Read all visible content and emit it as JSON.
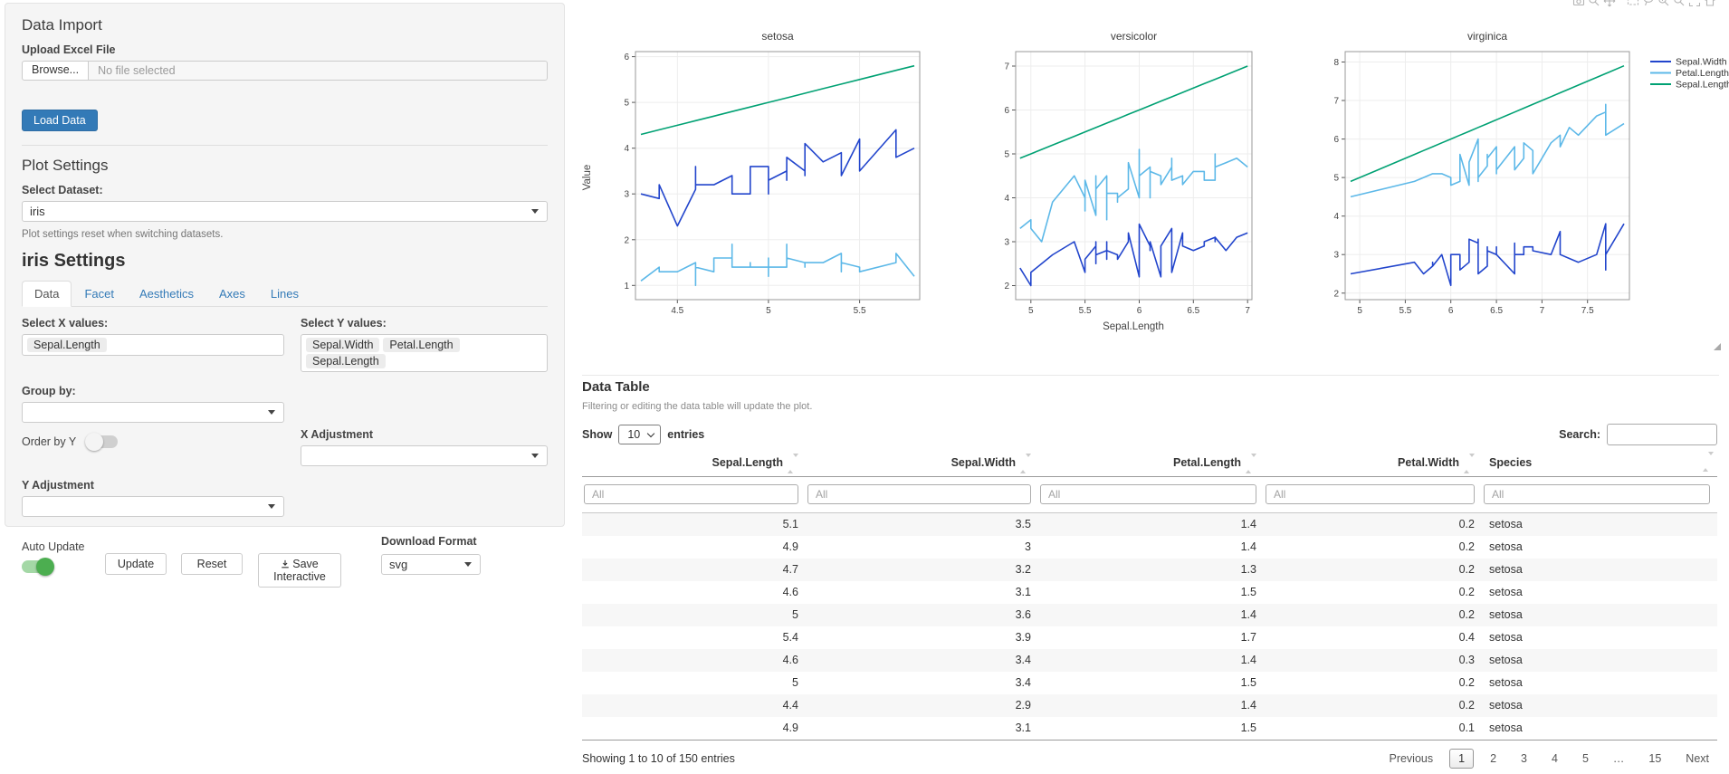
{
  "sidebar": {
    "data_import": {
      "title": "Data Import",
      "upload_label": "Upload Excel File",
      "browse_label": "Browse...",
      "file_placeholder": "No file selected",
      "load_button": "Load Data"
    },
    "plot_settings": {
      "title": "Plot Settings",
      "dataset_label": "Select Dataset:",
      "dataset_value": "iris",
      "help": "Plot settings reset when switching datasets."
    },
    "iris_settings": {
      "title": "iris Settings",
      "tabs": [
        {
          "label": "Data",
          "active": true
        },
        {
          "label": "Facet",
          "active": false
        },
        {
          "label": "Aesthetics",
          "active": false
        },
        {
          "label": "Axes",
          "active": false
        },
        {
          "label": "Lines",
          "active": false
        }
      ],
      "select_x_label": "Select X values:",
      "x_values": [
        "Sepal.Length"
      ],
      "select_y_label": "Select Y values:",
      "y_values": [
        "Sepal.Width",
        "Petal.Length",
        "Sepal.Length"
      ],
      "group_by_label": "Group by:",
      "group_by_value": "",
      "order_by_y_label": "Order by Y",
      "order_by_y_on": false,
      "x_adjustment_label": "X Adjustment",
      "x_adjustment_value": "",
      "y_adjustment_label": "Y Adjustment",
      "y_adjustment_value": "",
      "auto_update_label": "Auto Update",
      "auto_update_on": true,
      "update_button": "Update",
      "reset_button": "Reset",
      "save_button": "Save Interactive",
      "download_format_label": "Download Format",
      "download_format_value": "svg"
    },
    "accent_color": "#337ab7",
    "toggle_on_color": "#4cae50"
  },
  "toolbar": {
    "icons": [
      "camera-icon",
      "zoom-icon",
      "pan-icon",
      "box-select-icon",
      "lasso-select-icon",
      "zoom-in-icon",
      "zoom-out-icon",
      "autoscale-icon",
      "reset-axes-icon",
      "plotly-logo-icon"
    ]
  },
  "chart_data": {
    "type": "line",
    "xlabel": "Sepal.Length",
    "ylabel": "Value",
    "grid": true,
    "legend_position": "right",
    "series_names": [
      "Sepal.Width",
      "Petal.Length",
      "Sepal.Length"
    ],
    "series_colors": [
      "#2245cc",
      "#5cb8e8",
      "#00a173"
    ],
    "facets": [
      {
        "title": "setosa",
        "xlim": [
          4.27,
          5.83
        ],
        "ylim": [
          0.69,
          6.11
        ],
        "x_ticks": [
          4.5,
          5,
          5.5
        ],
        "y_ticks": [
          1,
          2,
          3,
          4,
          5,
          6
        ],
        "x": [
          4.3,
          4.4,
          4.4,
          4.4,
          4.5,
          4.6,
          4.6,
          4.6,
          4.6,
          4.7,
          4.7,
          4.8,
          4.8,
          4.8,
          4.8,
          4.8,
          4.9,
          4.9,
          4.9,
          4.9,
          5.0,
          5.0,
          5.0,
          5.0,
          5.0,
          5.0,
          5.0,
          5.0,
          5.1,
          5.1,
          5.1,
          5.1,
          5.1,
          5.1,
          5.1,
          5.1,
          5.2,
          5.2,
          5.2,
          5.3,
          5.4,
          5.4,
          5.4,
          5.4,
          5.4,
          5.5,
          5.5,
          5.7,
          5.7,
          5.8
        ],
        "series": {
          "Sepal.Width": [
            3.0,
            2.9,
            3.0,
            3.2,
            2.3,
            3.1,
            3.4,
            3.6,
            3.2,
            3.2,
            3.2,
            3.4,
            3.0,
            3.4,
            3.1,
            3.0,
            3.0,
            3.1,
            3.1,
            3.6,
            3.6,
            3.4,
            3.0,
            3.4,
            3.2,
            3.5,
            3.5,
            3.3,
            3.5,
            3.5,
            3.8,
            3.7,
            3.3,
            3.4,
            3.8,
            3.8,
            3.5,
            3.4,
            4.1,
            3.7,
            3.9,
            3.7,
            3.9,
            3.4,
            3.4,
            4.2,
            3.5,
            4.4,
            3.8,
            4.0
          ],
          "Petal.Length": [
            1.1,
            1.4,
            1.3,
            1.3,
            1.3,
            1.5,
            1.4,
            1.0,
            1.4,
            1.3,
            1.6,
            1.6,
            1.4,
            1.9,
            1.6,
            1.4,
            1.4,
            1.5,
            1.5,
            1.4,
            1.4,
            1.5,
            1.6,
            1.6,
            1.2,
            1.3,
            1.6,
            1.4,
            1.4,
            1.4,
            1.5,
            1.5,
            1.7,
            1.5,
            1.9,
            1.6,
            1.5,
            1.4,
            1.5,
            1.5,
            1.7,
            1.5,
            1.3,
            1.7,
            1.5,
            1.4,
            1.3,
            1.5,
            1.7,
            1.2
          ],
          "Sepal.Length": [
            4.3,
            4.4,
            4.4,
            4.4,
            4.5,
            4.6,
            4.6,
            4.6,
            4.6,
            4.7,
            4.7,
            4.8,
            4.8,
            4.8,
            4.8,
            4.8,
            4.9,
            4.9,
            4.9,
            4.9,
            5.0,
            5.0,
            5.0,
            5.0,
            5.0,
            5.0,
            5.0,
            5.0,
            5.1,
            5.1,
            5.1,
            5.1,
            5.1,
            5.1,
            5.1,
            5.1,
            5.2,
            5.2,
            5.2,
            5.3,
            5.4,
            5.4,
            5.4,
            5.4,
            5.4,
            5.5,
            5.5,
            5.7,
            5.7,
            5.8
          ]
        }
      },
      {
        "title": "versicolor",
        "xlim": [
          4.86,
          7.04
        ],
        "ylim": [
          1.68,
          7.33
        ],
        "x_ticks": [
          5,
          5.5,
          6,
          6.5,
          7
        ],
        "y_ticks": [
          2,
          3,
          4,
          5,
          6,
          7
        ],
        "x": [
          4.9,
          5.0,
          5.0,
          5.1,
          5.2,
          5.4,
          5.5,
          5.5,
          5.5,
          5.5,
          5.5,
          5.6,
          5.6,
          5.6,
          5.6,
          5.6,
          5.7,
          5.7,
          5.7,
          5.7,
          5.7,
          5.8,
          5.8,
          5.8,
          5.9,
          5.9,
          6.0,
          6.0,
          6.0,
          6.0,
          6.1,
          6.1,
          6.1,
          6.1,
          6.2,
          6.2,
          6.3,
          6.3,
          6.3,
          6.4,
          6.4,
          6.5,
          6.6,
          6.6,
          6.7,
          6.7,
          6.7,
          6.8,
          6.9,
          7.0
        ],
        "series": {
          "Sepal.Width": [
            2.4,
            2.0,
            2.3,
            2.5,
            2.7,
            3.0,
            2.3,
            2.4,
            2.4,
            2.5,
            2.6,
            2.9,
            3.0,
            2.5,
            3.0,
            2.7,
            2.8,
            2.6,
            3.0,
            2.9,
            2.8,
            2.7,
            2.7,
            2.6,
            3.0,
            3.2,
            2.2,
            2.9,
            2.7,
            3.4,
            2.9,
            2.8,
            2.8,
            3.0,
            2.2,
            2.9,
            3.3,
            2.5,
            2.3,
            3.2,
            2.9,
            2.8,
            2.9,
            3.0,
            3.1,
            3.0,
            3.1,
            2.8,
            3.1,
            3.2
          ],
          "Petal.Length": [
            3.3,
            3.5,
            3.3,
            3.0,
            3.9,
            4.5,
            4.0,
            3.8,
            3.7,
            4.0,
            4.4,
            3.6,
            4.5,
            3.9,
            4.1,
            4.2,
            4.5,
            3.5,
            4.2,
            4.2,
            4.1,
            4.1,
            3.9,
            4.0,
            4.2,
            4.8,
            4.0,
            4.5,
            5.1,
            4.5,
            4.7,
            4.0,
            4.7,
            4.6,
            4.5,
            4.3,
            4.7,
            4.9,
            4.4,
            4.5,
            4.3,
            4.6,
            4.6,
            4.4,
            4.4,
            5.0,
            4.7,
            4.8,
            4.9,
            4.7
          ],
          "Sepal.Length": [
            4.9,
            5.0,
            5.0,
            5.1,
            5.2,
            5.4,
            5.5,
            5.5,
            5.5,
            5.5,
            5.5,
            5.6,
            5.6,
            5.6,
            5.6,
            5.6,
            5.7,
            5.7,
            5.7,
            5.7,
            5.7,
            5.8,
            5.8,
            5.8,
            5.9,
            5.9,
            6.0,
            6.0,
            6.0,
            6.0,
            6.1,
            6.1,
            6.1,
            6.1,
            6.2,
            6.2,
            6.3,
            6.3,
            6.3,
            6.4,
            6.4,
            6.5,
            6.6,
            6.6,
            6.7,
            6.7,
            6.7,
            6.8,
            6.9,
            7.0
          ]
        }
      },
      {
        "title": "virginica",
        "xlim": [
          4.84,
          7.96
        ],
        "ylim": [
          1.83,
          8.27
        ],
        "x_ticks": [
          5,
          5.5,
          6,
          6.5,
          7,
          7.5
        ],
        "y_ticks": [
          2,
          3,
          4,
          5,
          6,
          7,
          8
        ],
        "x": [
          4.9,
          5.6,
          5.7,
          5.8,
          5.8,
          5.8,
          5.9,
          6.0,
          6.0,
          6.1,
          6.1,
          6.2,
          6.2,
          6.3,
          6.3,
          6.3,
          6.3,
          6.3,
          6.3,
          6.4,
          6.4,
          6.4,
          6.4,
          6.4,
          6.5,
          6.5,
          6.5,
          6.5,
          6.7,
          6.7,
          6.7,
          6.7,
          6.7,
          6.8,
          6.8,
          6.9,
          6.9,
          6.9,
          7.1,
          7.2,
          7.2,
          7.2,
          7.3,
          7.4,
          7.6,
          7.7,
          7.7,
          7.7,
          7.7,
          7.9
        ],
        "series": {
          "Sepal.Width": [
            2.5,
            2.8,
            2.5,
            2.7,
            2.8,
            2.7,
            3.0,
            2.2,
            3.0,
            3.0,
            2.6,
            2.8,
            3.4,
            3.3,
            2.9,
            2.7,
            2.8,
            3.4,
            2.5,
            2.7,
            3.2,
            2.8,
            2.8,
            3.1,
            3.0,
            3.2,
            3.0,
            3.0,
            2.5,
            3.3,
            3.1,
            3.3,
            3.0,
            3.0,
            3.2,
            3.2,
            3.1,
            3.1,
            3.0,
            3.6,
            3.2,
            3.0,
            2.9,
            2.8,
            3.0,
            3.8,
            2.6,
            2.8,
            3.0,
            3.8
          ],
          "Petal.Length": [
            4.5,
            4.9,
            5.0,
            5.1,
            5.1,
            5.1,
            5.1,
            5.0,
            4.8,
            4.9,
            5.6,
            4.8,
            5.4,
            6.0,
            5.6,
            4.9,
            5.1,
            5.6,
            5.0,
            5.3,
            5.3,
            5.6,
            5.6,
            5.5,
            5.8,
            5.1,
            5.5,
            5.2,
            5.8,
            5.7,
            5.6,
            5.7,
            5.2,
            5.5,
            5.9,
            5.7,
            5.4,
            5.1,
            5.9,
            6.1,
            6.0,
            5.8,
            6.3,
            6.1,
            6.6,
            6.7,
            6.9,
            6.7,
            6.1,
            6.4
          ],
          "Sepal.Length": [
            4.9,
            5.6,
            5.7,
            5.8,
            5.8,
            5.8,
            5.9,
            6.0,
            6.0,
            6.1,
            6.1,
            6.2,
            6.2,
            6.3,
            6.3,
            6.3,
            6.3,
            6.3,
            6.3,
            6.4,
            6.4,
            6.4,
            6.4,
            6.4,
            6.5,
            6.5,
            6.5,
            6.5,
            6.7,
            6.7,
            6.7,
            6.7,
            6.7,
            6.8,
            6.8,
            6.9,
            6.9,
            6.9,
            7.1,
            7.2,
            7.2,
            7.2,
            7.3,
            7.4,
            7.6,
            7.7,
            7.7,
            7.7,
            7.7,
            7.9
          ]
        }
      }
    ]
  },
  "table": {
    "title": "Data Table",
    "help": "Filtering or editing the data table will update the plot.",
    "show_label": "Show",
    "show_value": "10",
    "entries_label": "entries",
    "search_label": "Search:",
    "search_value": "",
    "filter_placeholder": "All",
    "columns": [
      {
        "label": "Sepal.Length",
        "align": "num"
      },
      {
        "label": "Sepal.Width",
        "align": "num"
      },
      {
        "label": "Petal.Length",
        "align": "num"
      },
      {
        "label": "Petal.Width",
        "align": "num"
      },
      {
        "label": "Species",
        "align": "txt"
      }
    ],
    "rows": [
      [
        "5.1",
        "3.5",
        "1.4",
        "0.2",
        "setosa"
      ],
      [
        "4.9",
        "3",
        "1.4",
        "0.2",
        "setosa"
      ],
      [
        "4.7",
        "3.2",
        "1.3",
        "0.2",
        "setosa"
      ],
      [
        "4.6",
        "3.1",
        "1.5",
        "0.2",
        "setosa"
      ],
      [
        "5",
        "3.6",
        "1.4",
        "0.2",
        "setosa"
      ],
      [
        "5.4",
        "3.9",
        "1.7",
        "0.4",
        "setosa"
      ],
      [
        "4.6",
        "3.4",
        "1.4",
        "0.3",
        "setosa"
      ],
      [
        "5",
        "3.4",
        "1.5",
        "0.2",
        "setosa"
      ],
      [
        "4.4",
        "2.9",
        "1.4",
        "0.2",
        "setosa"
      ],
      [
        "4.9",
        "3.1",
        "1.5",
        "0.1",
        "setosa"
      ]
    ],
    "info": "Showing 1 to 10 of 150 entries",
    "pagination": {
      "previous": "Previous",
      "pages": [
        "1",
        "2",
        "3",
        "4",
        "5",
        "…",
        "15"
      ],
      "current": "1",
      "next": "Next"
    }
  }
}
